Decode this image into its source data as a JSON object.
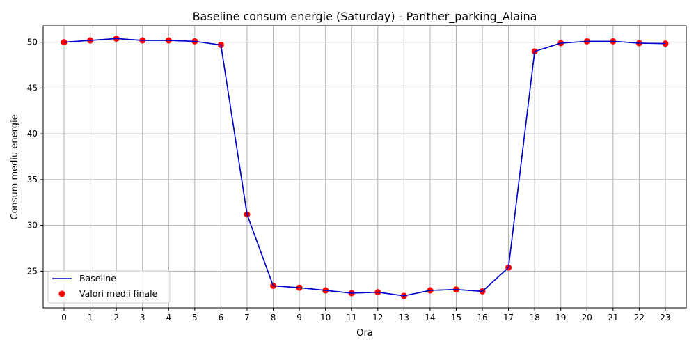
{
  "chart_data": {
    "type": "line",
    "title": "Baseline consum energie (Saturday) - Panther_parking_Alaina",
    "xlabel": "Ora",
    "ylabel": "Consum mediu energie",
    "x": [
      0,
      1,
      2,
      3,
      4,
      5,
      6,
      7,
      8,
      9,
      10,
      11,
      12,
      13,
      14,
      15,
      16,
      17,
      18,
      19,
      20,
      21,
      22,
      23
    ],
    "xticks": [
      "0",
      "1",
      "2",
      "3",
      "4",
      "5",
      "6",
      "7",
      "8",
      "9",
      "10",
      "11",
      "12",
      "13",
      "14",
      "15",
      "16",
      "17",
      "18",
      "19",
      "20",
      "21",
      "22",
      "23"
    ],
    "yticks": [
      "25",
      "30",
      "35",
      "40",
      "45",
      "50"
    ],
    "ylim": [
      21.0,
      51.8
    ],
    "xlim": [
      -0.8,
      23.8
    ],
    "grid": true,
    "legend_position": "lower-left",
    "series": [
      {
        "name": "Baseline",
        "kind": "line",
        "color": "#0000cc",
        "values": [
          50.0,
          50.2,
          50.4,
          50.2,
          50.2,
          50.1,
          49.7,
          31.2,
          23.4,
          23.2,
          22.9,
          22.6,
          22.7,
          22.3,
          22.9,
          23.0,
          22.8,
          25.4,
          49.0,
          49.9,
          50.1,
          50.1,
          49.9,
          49.85
        ]
      },
      {
        "name": "Valori medii finale",
        "kind": "scatter",
        "color": "#ff0000",
        "values": [
          50.0,
          50.2,
          50.4,
          50.2,
          50.2,
          50.1,
          49.7,
          31.2,
          23.4,
          23.2,
          22.9,
          22.6,
          22.7,
          22.3,
          22.9,
          23.0,
          22.8,
          25.4,
          49.0,
          49.9,
          50.1,
          50.1,
          49.9,
          49.85
        ]
      }
    ]
  }
}
